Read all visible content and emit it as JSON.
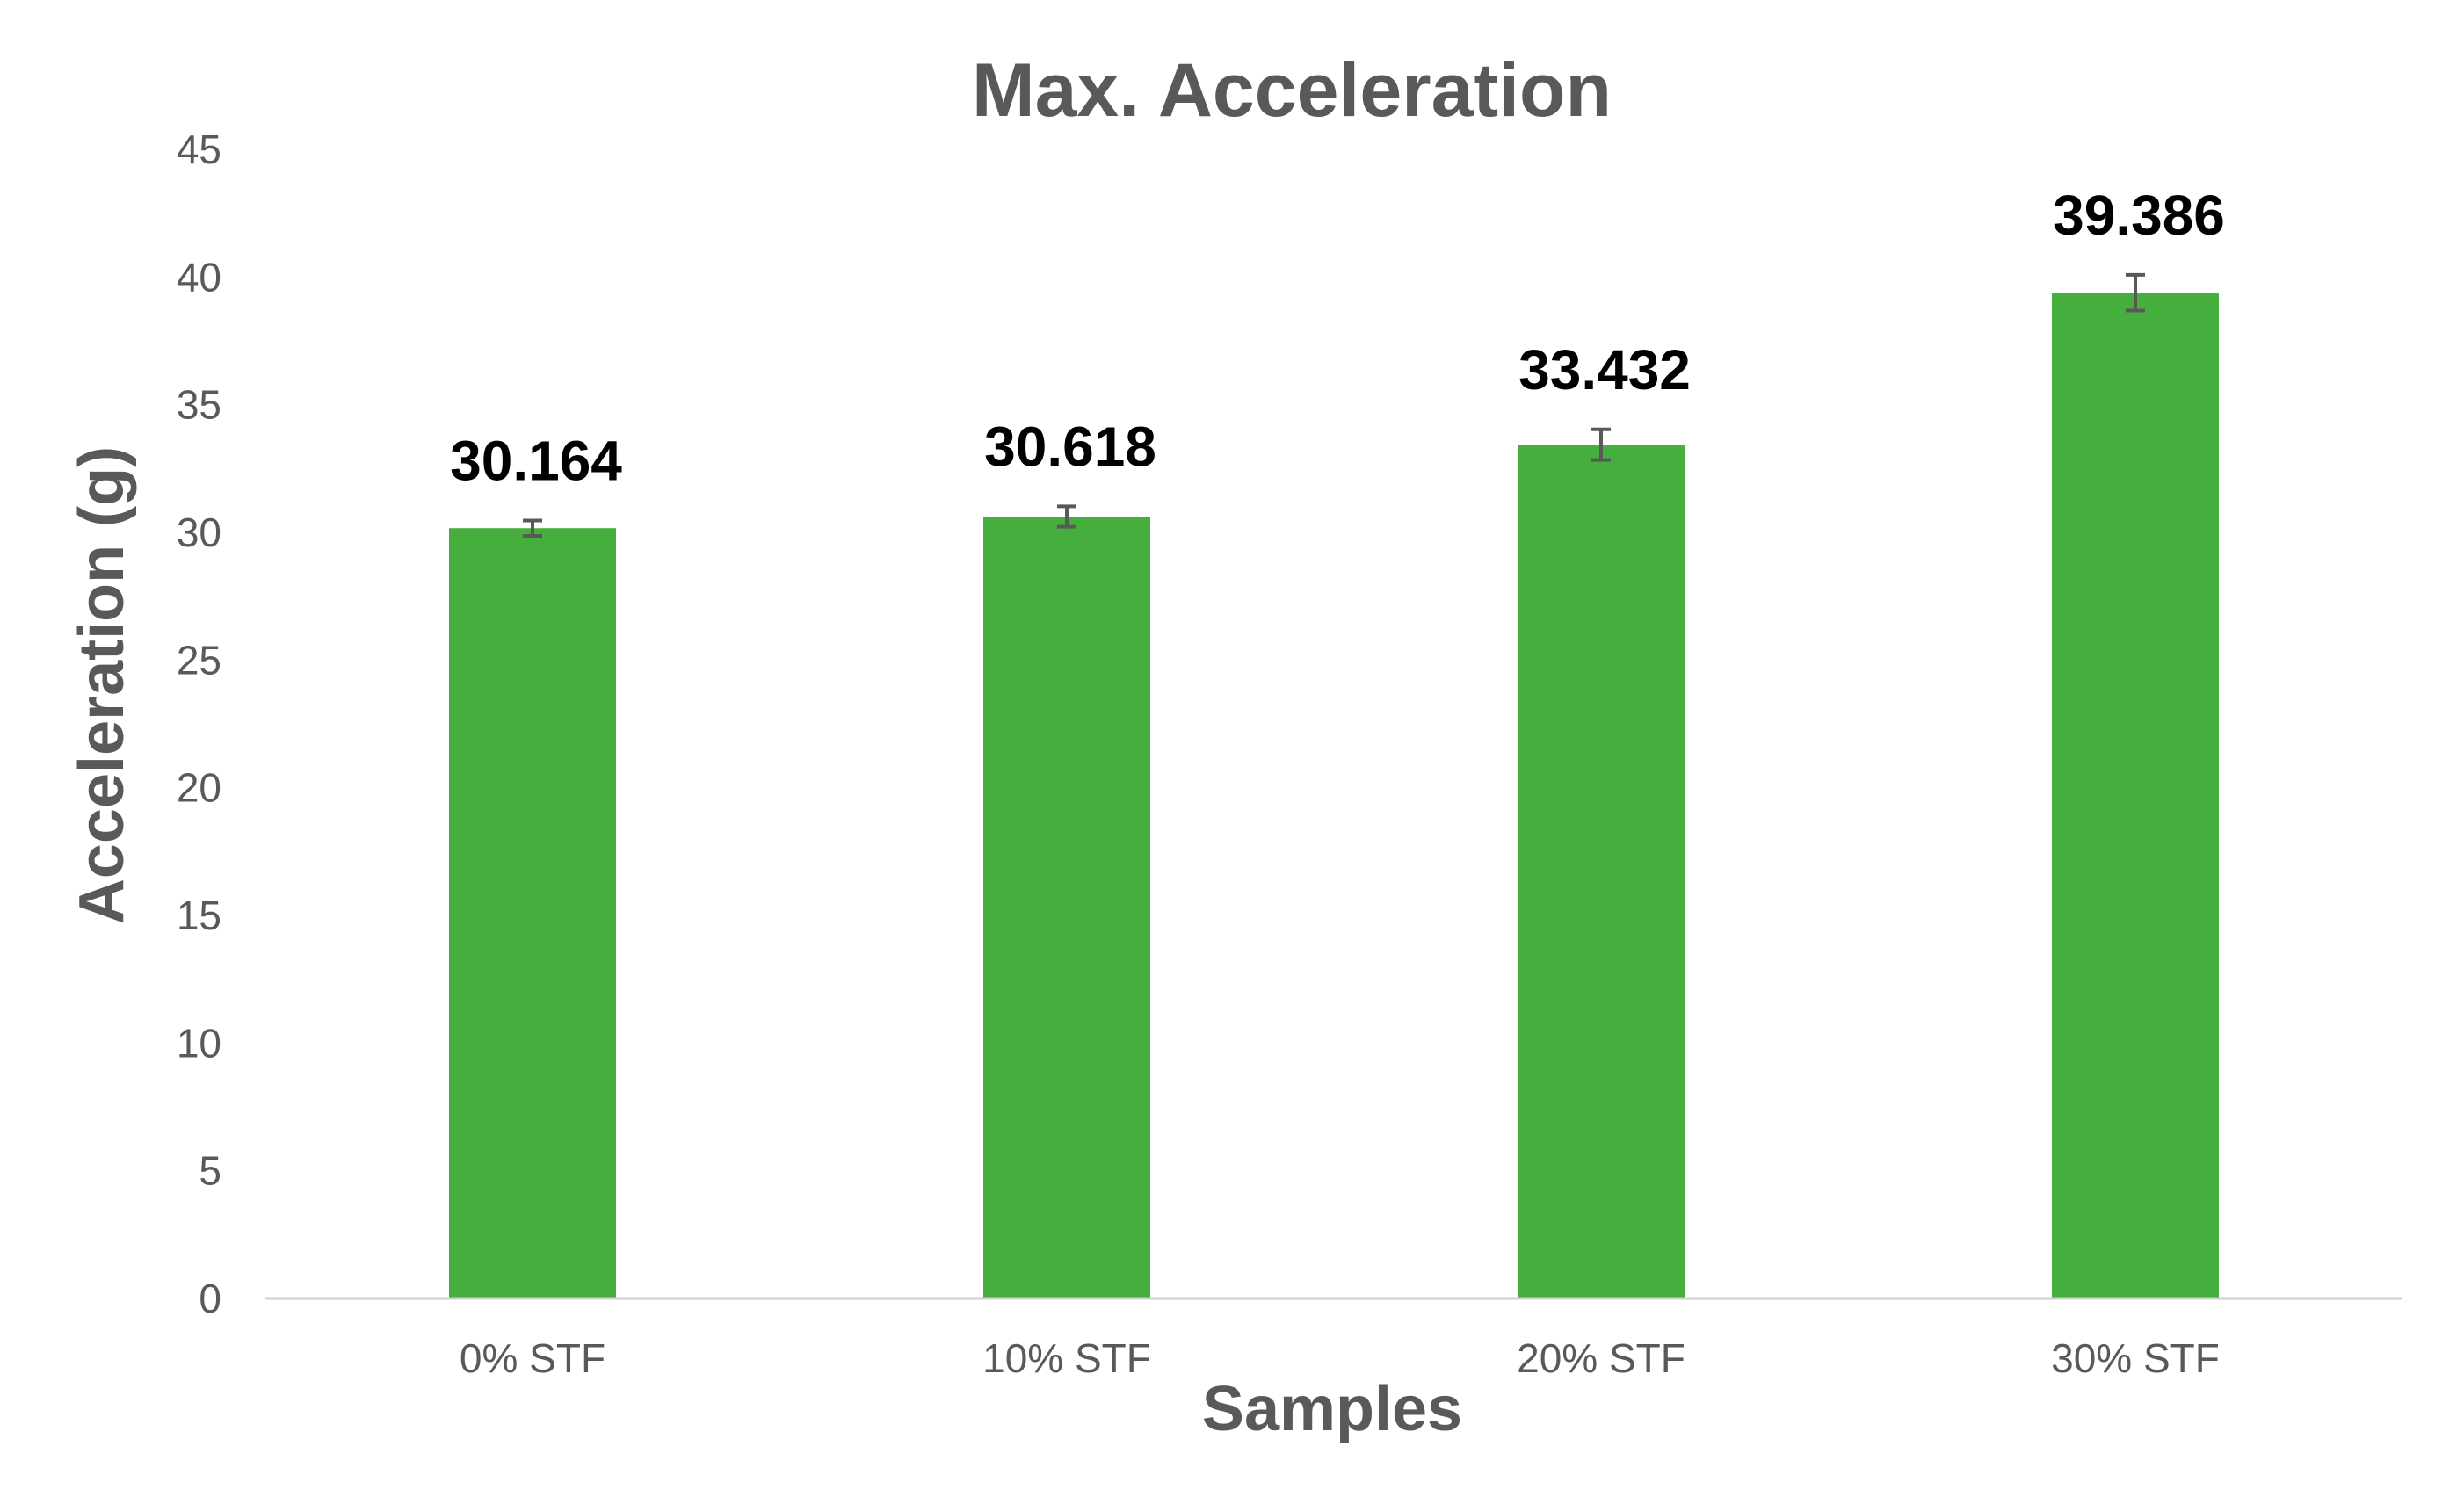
{
  "chart_data": {
    "type": "bar",
    "title": "Max. Acceleration",
    "xlabel": "Samples",
    "ylabel": "Acceleration (g)",
    "categories": [
      "0% STF",
      "10% STF",
      "20% STF",
      "30% STF"
    ],
    "values": [
      30.164,
      30.618,
      33.432,
      39.386
    ],
    "value_labels": [
      "30.164",
      "30.618",
      "33.432",
      "39.386"
    ],
    "error": [
      0.3,
      0.4,
      0.6,
      0.7
    ],
    "ylim": [
      0,
      45
    ],
    "yticks": [
      0,
      5,
      10,
      15,
      20,
      25,
      30,
      35,
      40,
      45
    ],
    "ytick_labels": [
      "0",
      "5",
      "10",
      "15",
      "20",
      "25",
      "30",
      "35",
      "40",
      "45"
    ],
    "grid": false,
    "legend": "none",
    "colors": {
      "bar": "#45AE3C",
      "axis": "#D0D0D0",
      "error_bar": "#595959",
      "title": "#595959",
      "tick_text": "#595959",
      "value_label": "#000000"
    }
  }
}
